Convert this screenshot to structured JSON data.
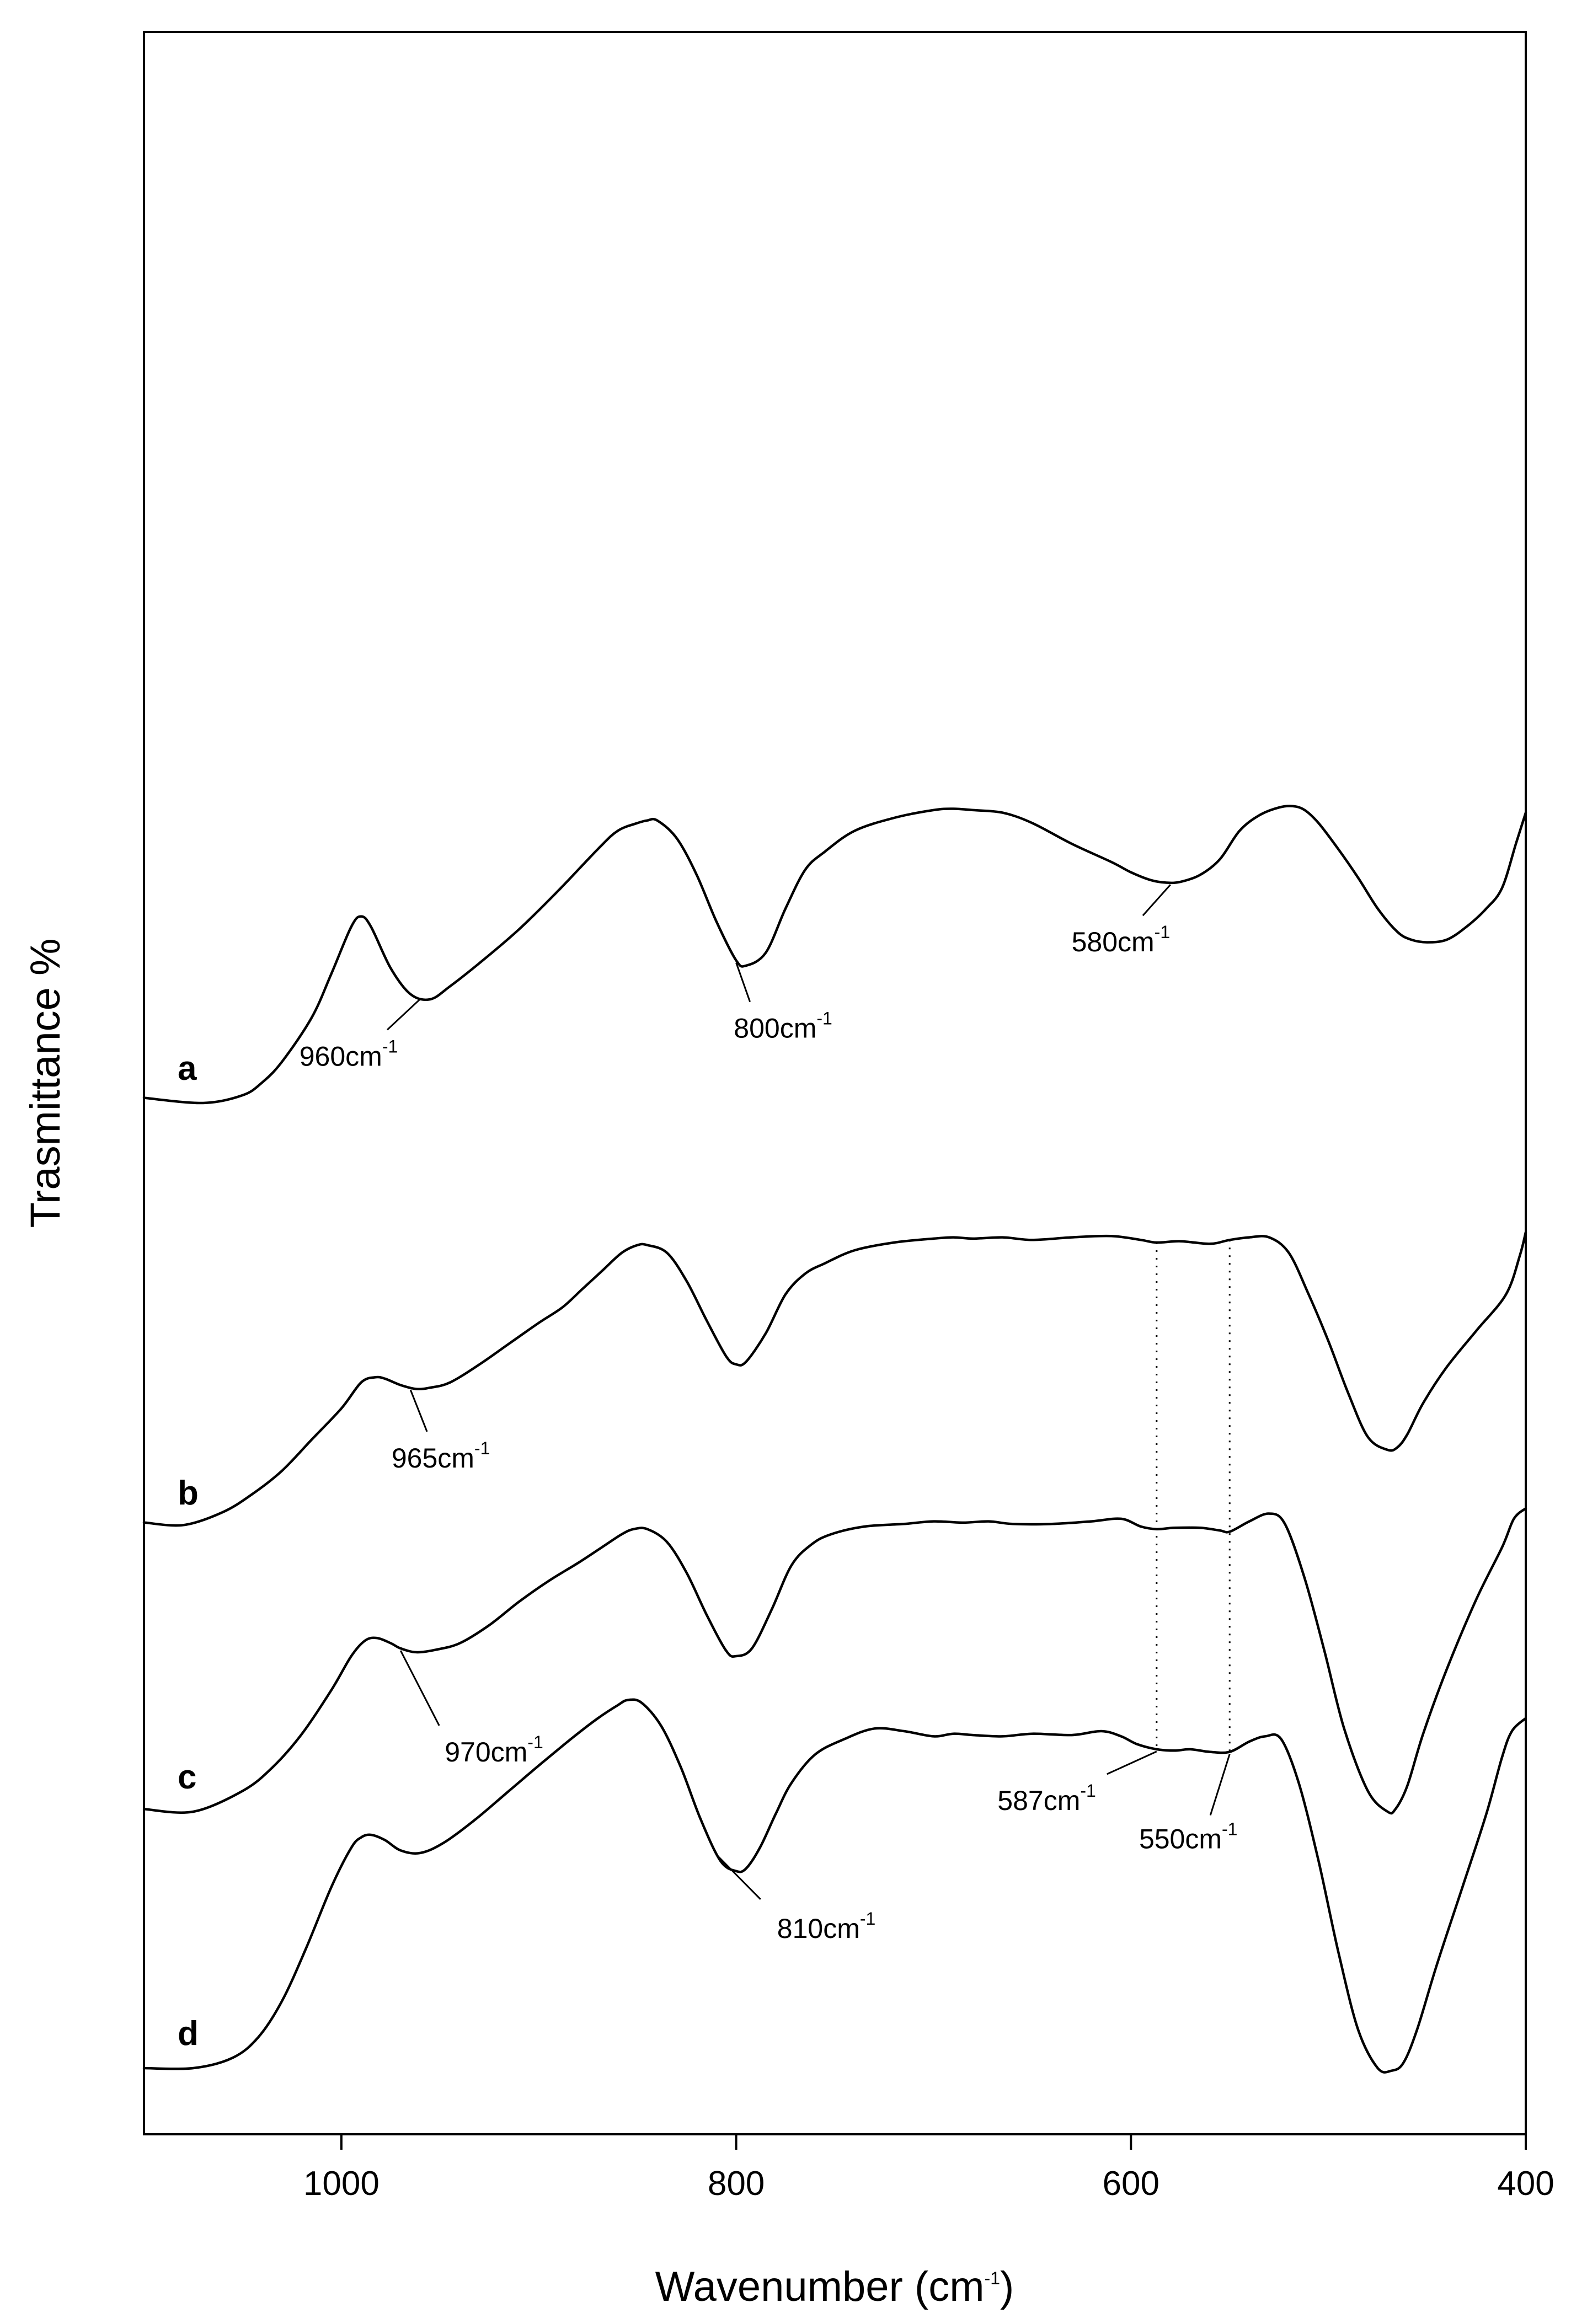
{
  "chart_data": {
    "type": "line",
    "title": "",
    "xlabel": "Wavenumber (cm",
    "xlabel_sup": "-1",
    "xlabel_end": ")",
    "ylabel": "Trasmittance %",
    "xlim": [
      1100,
      400
    ],
    "x_reversed": true,
    "y_ticks_labeled": false,
    "grid": false,
    "legend": "none",
    "x_ticks": [
      "1000",
      "800",
      "600",
      "400"
    ],
    "series": [
      {
        "name": "a",
        "x": [
          1100,
          1070,
          1050,
          1040,
          1030,
          1015,
          1005,
          995,
          990,
          985,
          975,
          965,
          955,
          945,
          930,
          910,
          890,
          870,
          860,
          850,
          845,
          840,
          830,
          820,
          810,
          800,
          795,
          785,
          775,
          765,
          755,
          740,
          720,
          700,
          690,
          680,
          665,
          650,
          630,
          610,
          600,
          590,
          582,
          575,
          565,
          555,
          545,
          535,
          525,
          518,
          512,
          505,
          495,
          485,
          475,
          465,
          458,
          450,
          440,
          430,
          420,
          412,
          405,
          400
        ],
        "y": [
          0.02,
          0.0,
          0.03,
          0.08,
          0.16,
          0.33,
          0.5,
          0.68,
          0.72,
          0.68,
          0.52,
          0.42,
          0.4,
          0.45,
          0.54,
          0.67,
          0.82,
          0.98,
          1.05,
          1.08,
          1.09,
          1.09,
          1.02,
          0.88,
          0.7,
          0.55,
          0.53,
          0.58,
          0.75,
          0.9,
          0.97,
          1.05,
          1.1,
          1.13,
          1.135,
          1.13,
          1.12,
          1.08,
          1.0,
          0.93,
          0.89,
          0.86,
          0.85,
          0.853,
          0.88,
          0.94,
          1.05,
          1.11,
          1.14,
          1.145,
          1.13,
          1.08,
          0.98,
          0.87,
          0.75,
          0.66,
          0.63,
          0.62,
          0.63,
          0.68,
          0.75,
          0.83,
          1.0,
          1.12
        ]
      },
      {
        "name": "b",
        "x": [
          1100,
          1080,
          1060,
          1045,
          1030,
          1015,
          1000,
          990,
          983,
          978,
          970,
          962,
          955,
          945,
          930,
          915,
          900,
          888,
          878,
          868,
          858,
          850,
          845,
          835,
          825,
          815,
          805,
          800,
          795,
          785,
          775,
          765,
          755,
          740,
          720,
          700,
          690,
          680,
          665,
          650,
          630,
          610,
          595,
          587,
          575,
          560,
          550,
          540,
          530,
          520,
          510,
          500,
          490,
          480,
          470,
          465,
          460,
          452,
          440,
          425,
          410,
          403,
          400
        ],
        "y": [
          0.02,
          0.01,
          0.06,
          0.13,
          0.22,
          0.34,
          0.46,
          0.56,
          0.58,
          0.575,
          0.55,
          0.535,
          0.54,
          0.56,
          0.63,
          0.71,
          0.79,
          0.85,
          0.92,
          0.99,
          1.06,
          1.09,
          1.09,
          1.06,
          0.95,
          0.8,
          0.66,
          0.63,
          0.64,
          0.75,
          0.9,
          0.98,
          1.02,
          1.07,
          1.1,
          1.115,
          1.12,
          1.115,
          1.12,
          1.11,
          1.12,
          1.125,
          1.11,
          1.1,
          1.105,
          1.095,
          1.11,
          1.12,
          1.12,
          1.06,
          0.9,
          0.72,
          0.52,
          0.35,
          0.3,
          0.31,
          0.36,
          0.48,
          0.62,
          0.76,
          0.9,
          1.05,
          1.14
        ]
      },
      {
        "name": "c",
        "x": [
          1100,
          1075,
          1050,
          1035,
          1020,
          1005,
          995,
          988,
          982,
          975,
          970,
          962,
          952,
          940,
          925,
          910,
          895,
          880,
          868,
          858,
          852,
          845,
          835,
          825,
          815,
          805,
          800,
          792,
          782,
          772,
          762,
          752,
          735,
          715,
          700,
          685,
          672,
          660,
          640,
          620,
          605,
          595,
          587,
          578,
          565,
          555,
          550,
          540,
          530,
          522,
          512,
          502,
          492,
          480,
          470,
          466,
          460,
          452,
          440,
          425,
          412,
          406,
          400
        ],
        "y": [
          0.01,
          0.0,
          0.08,
          0.17,
          0.3,
          0.47,
          0.6,
          0.66,
          0.67,
          0.65,
          0.63,
          0.615,
          0.625,
          0.65,
          0.72,
          0.81,
          0.89,
          0.96,
          1.02,
          1.07,
          1.09,
          1.09,
          1.04,
          0.92,
          0.76,
          0.62,
          0.6,
          0.63,
          0.78,
          0.95,
          1.03,
          1.07,
          1.1,
          1.11,
          1.12,
          1.115,
          1.12,
          1.11,
          1.11,
          1.12,
          1.13,
          1.1,
          1.09,
          1.095,
          1.095,
          1.085,
          1.08,
          1.12,
          1.15,
          1.11,
          0.9,
          0.62,
          0.32,
          0.08,
          0.0,
          0.01,
          0.1,
          0.3,
          0.55,
          0.82,
          1.02,
          1.13,
          1.17
        ]
      },
      {
        "name": "d",
        "x": [
          1100,
          1075,
          1055,
          1042,
          1030,
          1018,
          1005,
          995,
          990,
          985,
          978,
          970,
          960,
          948,
          932,
          915,
          898,
          882,
          870,
          860,
          855,
          848,
          838,
          828,
          818,
          808,
          800,
          795,
          788,
          780,
          772,
          760,
          745,
          730,
          715,
          700,
          690,
          680,
          665,
          650,
          630,
          615,
          605,
          597,
          587,
          578,
          570,
          560,
          550,
          540,
          532,
          524,
          515,
          505,
          495,
          485,
          475,
          468,
          462,
          455,
          445,
          432,
          420,
          412,
          407,
          400
        ],
        "y": [
          0.0,
          0.0,
          0.04,
          0.12,
          0.26,
          0.46,
          0.7,
          0.85,
          0.89,
          0.9,
          0.88,
          0.84,
          0.83,
          0.87,
          0.96,
          1.07,
          1.18,
          1.28,
          1.35,
          1.4,
          1.42,
          1.41,
          1.32,
          1.16,
          0.96,
          0.8,
          0.76,
          0.77,
          0.85,
          0.98,
          1.1,
          1.21,
          1.27,
          1.31,
          1.3,
          1.28,
          1.29,
          1.285,
          1.28,
          1.29,
          1.285,
          1.3,
          1.28,
          1.25,
          1.23,
          1.225,
          1.23,
          1.22,
          1.22,
          1.26,
          1.28,
          1.27,
          1.1,
          0.8,
          0.45,
          0.15,
          0.0,
          -0.01,
          0.02,
          0.15,
          0.4,
          0.7,
          0.98,
          1.2,
          1.3,
          1.35
        ]
      }
    ],
    "series_labels": [
      "a",
      "b",
      "c",
      "d"
    ],
    "annotations": [
      {
        "series": "a",
        "x": 580,
        "text": "580cm",
        "sup": "-1"
      },
      {
        "series": "a",
        "x": 800,
        "text": "800cm",
        "sup": "-1"
      },
      {
        "series": "a",
        "x": 960,
        "text": "960cm",
        "sup": "-1"
      },
      {
        "series": "b",
        "x": 965,
        "text": "965cm",
        "sup": "-1"
      },
      {
        "series": "c",
        "x": 970,
        "text": "970cm",
        "sup": "-1"
      },
      {
        "series": "d",
        "x": 810,
        "text": "810cm",
        "sup": "-1"
      },
      {
        "series": "d",
        "x": 587,
        "text": "587cm",
        "sup": "-1"
      },
      {
        "series": "d",
        "x": 550,
        "text": "550cm",
        "sup": "-1"
      }
    ],
    "guide_lines_at": [
      587,
      550
    ]
  }
}
